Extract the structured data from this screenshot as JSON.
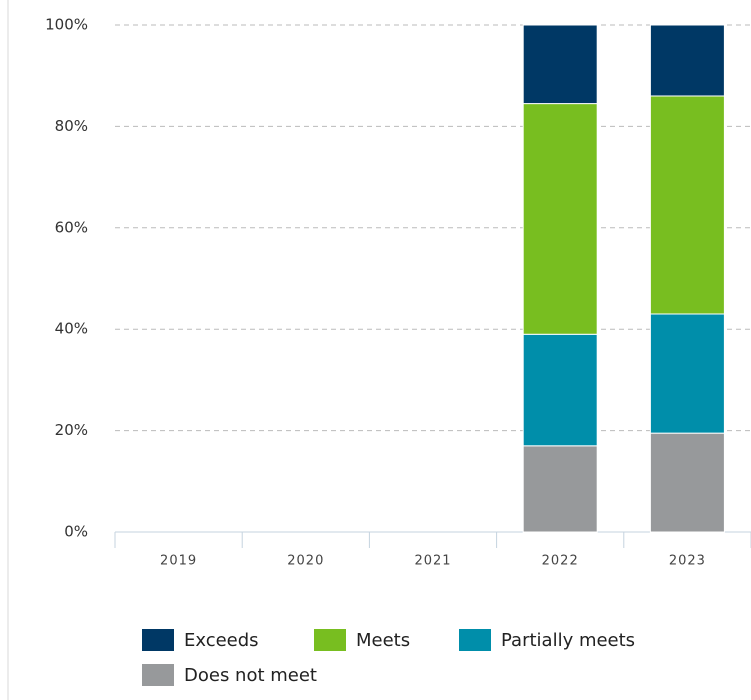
{
  "chart_data": {
    "type": "stacked_bar",
    "categories": [
      "2019",
      "2020",
      "2021",
      "2022",
      "2023"
    ],
    "series": [
      {
        "name": "Exceeds",
        "color": "#003865",
        "values": [
          null,
          null,
          null,
          15.5,
          14
        ]
      },
      {
        "name": "Meets",
        "color": "#78be20",
        "values": [
          null,
          null,
          null,
          45.5,
          43
        ]
      },
      {
        "name": "Partially meets",
        "color": "#008eaa",
        "values": [
          null,
          null,
          null,
          22,
          23.5
        ]
      },
      {
        "name": "Does not meet",
        "color": "#97999b",
        "values": [
          null,
          null,
          null,
          17,
          19.5
        ]
      }
    ],
    "ylim": [
      0,
      100
    ],
    "yticks": [
      {
        "value": 0,
        "label": "0%"
      },
      {
        "value": 20,
        "label": "20%"
      },
      {
        "value": 40,
        "label": "40%"
      },
      {
        "value": 60,
        "label": "60%"
      },
      {
        "value": 80,
        "label": "80%"
      },
      {
        "value": 100,
        "label": "100%"
      }
    ],
    "grid": true
  }
}
